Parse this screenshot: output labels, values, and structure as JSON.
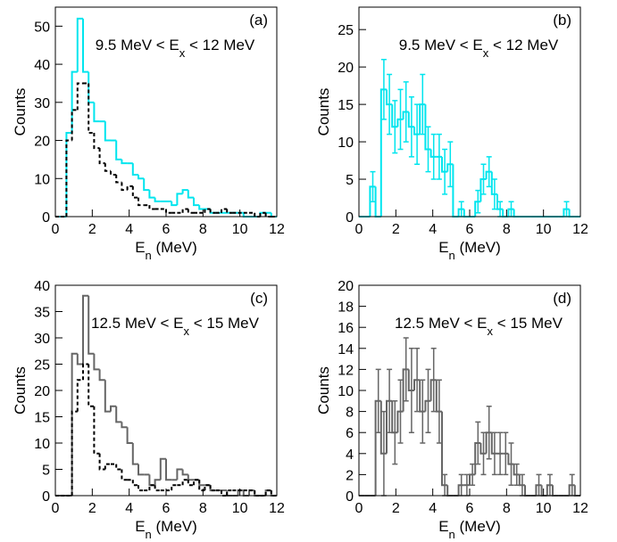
{
  "chart_data": [
    {
      "type": "histogram",
      "panel_label": "(a)",
      "annotation": [
        "9.5 MeV < E",
        "x",
        " < 12 MeV"
      ],
      "xlabel": [
        "E",
        "n",
        " (MeV)"
      ],
      "ylabel": "Counts",
      "bins": [
        0,
        0.3,
        0.6,
        0.9,
        1.2,
        1.5,
        1.8,
        2.1,
        2.4,
        2.7,
        3,
        3.3,
        3.6,
        3.9,
        4.2,
        4.5,
        4.8,
        5.1,
        5.4,
        5.7,
        6,
        6.3,
        6.6,
        6.9,
        7.2,
        7.5,
        7.8,
        8.1,
        8.4,
        8.7,
        9,
        9.3,
        9.6,
        9.9,
        10.2,
        10.5,
        10.8,
        11.1,
        11.4,
        11.7,
        12
      ],
      "xlim": [
        0,
        12
      ],
      "xticks": [
        0,
        2,
        4,
        6,
        8,
        10,
        12
      ],
      "ylim": [
        0,
        55
      ],
      "yticks": [
        0,
        10,
        20,
        30,
        40,
        50
      ],
      "series": [
        {
          "color": "#00e5ee",
          "line_style": "solid",
          "values": [
            0,
            0,
            22,
            38,
            52,
            38,
            30,
            25,
            25,
            20,
            20,
            15,
            14,
            14,
            11,
            10,
            7,
            5,
            4,
            4,
            4,
            3,
            6,
            7,
            5,
            3,
            2,
            2,
            1,
            1,
            1,
            1,
            1,
            1,
            0,
            0,
            0,
            1,
            1,
            0
          ]
        },
        {
          "color": "#000000",
          "line_style": "dashed",
          "values": [
            0,
            0,
            20,
            28,
            35,
            35,
            22,
            18,
            14,
            12,
            11,
            9,
            7,
            8,
            5,
            3,
            3,
            2,
            2,
            2,
            1,
            1,
            1,
            2,
            1,
            1,
            1,
            2,
            1,
            1,
            2,
            1,
            1,
            1,
            1,
            1,
            0,
            1,
            0,
            0
          ]
        }
      ]
    },
    {
      "type": "histogram",
      "panel_label": "(b)",
      "annotation": [
        "9.5 MeV < E",
        "x",
        " < 12 MeV"
      ],
      "xlabel": [
        "E",
        "n",
        " (MeV)"
      ],
      "ylabel": "Counts",
      "bins": [
        0,
        0.3,
        0.6,
        0.9,
        1.2,
        1.5,
        1.8,
        2.1,
        2.4,
        2.7,
        3,
        3.3,
        3.6,
        3.9,
        4.2,
        4.5,
        4.8,
        5.1,
        5.4,
        5.7,
        6,
        6.3,
        6.6,
        6.9,
        7.2,
        7.5,
        7.8,
        8.1,
        8.4,
        8.7,
        9,
        9.3,
        9.6,
        9.9,
        10.2,
        10.5,
        10.8,
        11.1,
        11.4,
        11.7,
        12
      ],
      "xlim": [
        0,
        12
      ],
      "xticks": [
        0,
        2,
        4,
        6,
        8,
        10,
        12
      ],
      "ylim": [
        0,
        28
      ],
      "yticks": [
        0,
        5,
        10,
        15,
        20,
        25
      ],
      "series": [
        {
          "color": "#00e5ee",
          "line_style": "solid",
          "values": [
            0,
            0,
            4,
            0,
            17,
            15,
            12,
            13,
            14,
            12,
            11,
            15,
            9,
            8,
            8,
            6,
            7,
            0,
            1,
            0,
            0,
            2,
            5,
            6,
            3,
            1,
            0,
            1,
            0,
            0,
            0,
            0,
            0,
            0,
            0,
            0,
            0,
            1,
            0,
            0
          ],
          "errors": [
            0,
            0,
            2,
            0,
            4,
            4,
            3.5,
            4,
            4,
            4,
            4,
            4,
            3,
            3,
            3,
            3,
            3,
            0,
            1,
            0,
            0,
            1.5,
            2,
            2,
            2,
            1,
            0,
            1,
            0,
            0,
            0,
            0,
            0,
            0,
            0,
            0,
            0,
            1,
            0,
            0
          ]
        }
      ]
    },
    {
      "type": "histogram",
      "panel_label": "(c)",
      "annotation": [
        "12.5 MeV < E",
        "x",
        " < 15 MeV"
      ],
      "xlabel": [
        "E",
        "n",
        " (MeV)"
      ],
      "ylabel": "Counts",
      "bins": [
        0,
        0.3,
        0.6,
        0.9,
        1.2,
        1.5,
        1.8,
        2.1,
        2.4,
        2.7,
        3,
        3.3,
        3.6,
        3.9,
        4.2,
        4.5,
        4.8,
        5.1,
        5.4,
        5.7,
        6,
        6.3,
        6.6,
        6.9,
        7.2,
        7.5,
        7.8,
        8.1,
        8.4,
        8.7,
        9,
        9.3,
        9.6,
        9.9,
        10.2,
        10.5,
        10.8,
        11.1,
        11.4,
        11.7,
        12
      ],
      "xlim": [
        0,
        12
      ],
      "xticks": [
        0,
        2,
        4,
        6,
        8,
        10,
        12
      ],
      "ylim": [
        0,
        40
      ],
      "yticks": [
        0,
        5,
        10,
        15,
        20,
        25,
        30,
        35,
        40
      ],
      "series": [
        {
          "color": "#666666",
          "line_style": "solid",
          "values": [
            0,
            0,
            0,
            27,
            25,
            38,
            27,
            24,
            22,
            16,
            17,
            14,
            13,
            10,
            6,
            4,
            4,
            2,
            3,
            7,
            3,
            3,
            5,
            4,
            3,
            3,
            2,
            2,
            1,
            1,
            1,
            0,
            0,
            1,
            0,
            1,
            0,
            0,
            1,
            0
          ]
        },
        {
          "color": "#000000",
          "line_style": "dashed",
          "values": [
            0,
            0,
            0,
            16,
            22,
            25,
            17,
            8,
            5,
            6,
            6,
            5,
            3,
            3,
            2,
            1,
            1,
            2,
            1,
            1,
            1,
            2,
            2,
            3,
            2,
            3,
            1,
            2,
            1,
            1,
            0,
            1,
            1,
            1,
            1,
            1,
            0,
            0,
            1,
            0
          ]
        }
      ]
    },
    {
      "type": "histogram",
      "panel_label": "(d)",
      "annotation": [
        "12.5 MeV < E",
        "x",
        " < 15 MeV"
      ],
      "xlabel": [
        "E",
        "n",
        " (MeV)"
      ],
      "ylabel": "Counts",
      "bins": [
        0,
        0.3,
        0.6,
        0.9,
        1.2,
        1.5,
        1.8,
        2.1,
        2.4,
        2.7,
        3,
        3.3,
        3.6,
        3.9,
        4.2,
        4.5,
        4.8,
        5.1,
        5.4,
        5.7,
        6,
        6.3,
        6.6,
        6.9,
        7.2,
        7.5,
        7.8,
        8.1,
        8.4,
        8.7,
        9,
        9.3,
        9.6,
        9.9,
        10.2,
        10.5,
        10.8,
        11.1,
        11.4,
        11.7,
        12
      ],
      "xlim": [
        0,
        12
      ],
      "xticks": [
        0,
        2,
        4,
        6,
        8,
        10,
        12
      ],
      "ylim": [
        0,
        20
      ],
      "yticks": [
        0,
        2,
        4,
        6,
        8,
        10,
        12,
        14,
        16,
        18,
        20
      ],
      "series": [
        {
          "color": "#666666",
          "line_style": "solid",
          "values": [
            0,
            0,
            0,
            9,
            4,
            9,
            6,
            8,
            12,
            10,
            11,
            8,
            9,
            11,
            8,
            1,
            0,
            0,
            1,
            1,
            2,
            5,
            4,
            6,
            4,
            4,
            4,
            3,
            2,
            1,
            0,
            0,
            1,
            0,
            1,
            0,
            0,
            0,
            1,
            0
          ],
          "errors": [
            0,
            0,
            0,
            3,
            4,
            3,
            3,
            3,
            3,
            4,
            3,
            3,
            3,
            3,
            3,
            1,
            0,
            0,
            1,
            1,
            1,
            2,
            2,
            2.5,
            2,
            2,
            2,
            2,
            1,
            1,
            0,
            0,
            1,
            0,
            1,
            0,
            0,
            0,
            1,
            0
          ]
        }
      ]
    }
  ]
}
